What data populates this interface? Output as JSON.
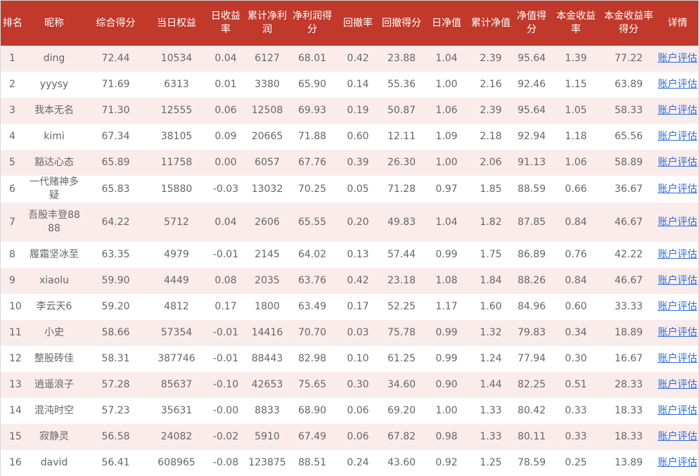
{
  "table": {
    "headers": [
      "排名",
      "昵称",
      "综合得分",
      "当日权益",
      "日收益率",
      "累计净利润",
      "净利润得分",
      "回撤率",
      "回撤得分",
      "日净值",
      "累计净值",
      "净值得分",
      "本金收益率",
      "本金收益率得分",
      "详情"
    ],
    "rows": [
      {
        "rank": "1",
        "name": "ding",
        "score": "72.44",
        "equity": "10534",
        "daily_return": "0.04",
        "cum_profit": "6127",
        "profit_score": "68.01",
        "drawdown": "0.42",
        "drawdown_score": "23.88",
        "daily_nav": "1.04",
        "cum_nav": "2.39",
        "nav_score": "95.64",
        "principal_return": "1.39",
        "principal_score": "77.22",
        "detail": "账户评估"
      },
      {
        "rank": "2",
        "name": "yyysy",
        "score": "71.69",
        "equity": "6313",
        "daily_return": "0.01",
        "cum_profit": "3380",
        "profit_score": "65.90",
        "drawdown": "0.14",
        "drawdown_score": "55.36",
        "daily_nav": "1.00",
        "cum_nav": "2.16",
        "nav_score": "92.46",
        "principal_return": "1.15",
        "principal_score": "63.89",
        "detail": "账户评估"
      },
      {
        "rank": "3",
        "name": "我本无名",
        "score": "71.30",
        "equity": "12555",
        "daily_return": "0.06",
        "cum_profit": "12508",
        "profit_score": "69.93",
        "drawdown": "0.19",
        "drawdown_score": "50.87",
        "daily_nav": "1.06",
        "cum_nav": "2.39",
        "nav_score": "95.64",
        "principal_return": "1.05",
        "principal_score": "58.33",
        "detail": "账户评估"
      },
      {
        "rank": "4",
        "name": "kimi",
        "score": "67.34",
        "equity": "38105",
        "daily_return": "0.09",
        "cum_profit": "20665",
        "profit_score": "71.88",
        "drawdown": "0.60",
        "drawdown_score": "12.11",
        "daily_nav": "1.09",
        "cum_nav": "2.18",
        "nav_score": "92.94",
        "principal_return": "1.18",
        "principal_score": "65.56",
        "detail": "账户评估"
      },
      {
        "rank": "5",
        "name": "豁达心态",
        "score": "65.89",
        "equity": "11758",
        "daily_return": "0.00",
        "cum_profit": "6057",
        "profit_score": "67.76",
        "drawdown": "0.39",
        "drawdown_score": "26.30",
        "daily_nav": "1.00",
        "cum_nav": "2.06",
        "nav_score": "91.13",
        "principal_return": "1.06",
        "principal_score": "58.89",
        "detail": "账户评估"
      },
      {
        "rank": "6",
        "name": "一代赌神多疑",
        "score": "65.83",
        "equity": "15880",
        "daily_return": "-0.03",
        "cum_profit": "13032",
        "profit_score": "70.25",
        "drawdown": "0.05",
        "drawdown_score": "71.28",
        "daily_nav": "0.97",
        "cum_nav": "1.85",
        "nav_score": "88.59",
        "principal_return": "0.66",
        "principal_score": "36.67",
        "detail": "账户评估"
      },
      {
        "rank": "7",
        "name": "吾股丰登8888",
        "score": "64.22",
        "equity": "5712",
        "daily_return": "0.04",
        "cum_profit": "2606",
        "profit_score": "65.55",
        "drawdown": "0.20",
        "drawdown_score": "49.83",
        "daily_nav": "1.04",
        "cum_nav": "1.82",
        "nav_score": "87.85",
        "principal_return": "0.84",
        "principal_score": "46.67",
        "detail": "账户评估"
      },
      {
        "rank": "8",
        "name": "履霜坚冰至",
        "score": "63.35",
        "equity": "4979",
        "daily_return": "-0.01",
        "cum_profit": "2145",
        "profit_score": "64.02",
        "drawdown": "0.13",
        "drawdown_score": "57.44",
        "daily_nav": "0.99",
        "cum_nav": "1.75",
        "nav_score": "86.89",
        "principal_return": "0.76",
        "principal_score": "42.22",
        "detail": "账户评估"
      },
      {
        "rank": "9",
        "name": "xiaolu",
        "score": "59.90",
        "equity": "4449",
        "daily_return": "0.08",
        "cum_profit": "2035",
        "profit_score": "63.76",
        "drawdown": "0.42",
        "drawdown_score": "23.18",
        "daily_nav": "1.08",
        "cum_nav": "1.84",
        "nav_score": "88.26",
        "principal_return": "0.84",
        "principal_score": "46.67",
        "detail": "账户评估"
      },
      {
        "rank": "10",
        "name": "李云天6",
        "score": "59.20",
        "equity": "4812",
        "daily_return": "0.17",
        "cum_profit": "1800",
        "profit_score": "63.49",
        "drawdown": "0.17",
        "drawdown_score": "52.25",
        "daily_nav": "1.17",
        "cum_nav": "1.60",
        "nav_score": "84.96",
        "principal_return": "0.60",
        "principal_score": "33.33",
        "detail": "账户评估"
      },
      {
        "rank": "11",
        "name": "小史",
        "score": "58.66",
        "equity": "57354",
        "daily_return": "-0.01",
        "cum_profit": "14416",
        "profit_score": "70.70",
        "drawdown": "0.03",
        "drawdown_score": "75.78",
        "daily_nav": "0.99",
        "cum_nav": "1.32",
        "nav_score": "79.83",
        "principal_return": "0.34",
        "principal_score": "18.89",
        "detail": "账户评估"
      },
      {
        "rank": "12",
        "name": "整股砖佳",
        "score": "58.31",
        "equity": "387746",
        "daily_return": "-0.01",
        "cum_profit": "88443",
        "profit_score": "82.98",
        "drawdown": "0.10",
        "drawdown_score": "61.25",
        "daily_nav": "0.99",
        "cum_nav": "1.24",
        "nav_score": "77.94",
        "principal_return": "0.30",
        "principal_score": "16.67",
        "detail": "账户评估"
      },
      {
        "rank": "13",
        "name": "逍遥浪子",
        "score": "57.28",
        "equity": "85637",
        "daily_return": "-0.10",
        "cum_profit": "42653",
        "profit_score": "75.65",
        "drawdown": "0.30",
        "drawdown_score": "34.60",
        "daily_nav": "0.90",
        "cum_nav": "1.44",
        "nav_score": "82.25",
        "principal_return": "0.51",
        "principal_score": "28.33",
        "detail": "账户评估"
      },
      {
        "rank": "14",
        "name": "混沌时空",
        "score": "57.23",
        "equity": "35631",
        "daily_return": "-0.00",
        "cum_profit": "8833",
        "profit_score": "68.90",
        "drawdown": "0.06",
        "drawdown_score": "69.20",
        "daily_nav": "1.00",
        "cum_nav": "1.33",
        "nav_score": "80.42",
        "principal_return": "0.33",
        "principal_score": "18.33",
        "detail": "账户评估"
      },
      {
        "rank": "15",
        "name": "寂静灵",
        "score": "56.58",
        "equity": "24082",
        "daily_return": "-0.02",
        "cum_profit": "5910",
        "profit_score": "67.49",
        "drawdown": "0.06",
        "drawdown_score": "67.82",
        "daily_nav": "0.98",
        "cum_nav": "1.33",
        "nav_score": "80.11",
        "principal_return": "0.33",
        "principal_score": "18.33",
        "detail": "账户评估"
      },
      {
        "rank": "16",
        "name": "david",
        "score": "56.41",
        "equity": "608965",
        "daily_return": "-0.08",
        "cum_profit": "123875",
        "profit_score": "88.51",
        "drawdown": "0.24",
        "drawdown_score": "43.60",
        "daily_nav": "0.92",
        "cum_nav": "1.25",
        "nav_score": "78.59",
        "principal_return": "0.25",
        "principal_score": "13.89",
        "detail": "账户评估"
      }
    ]
  },
  "colors": {
    "header_bg": "#c0392b",
    "row_alt_bg": "#fbecec",
    "text": "#666666",
    "link": "#2a6be0"
  }
}
